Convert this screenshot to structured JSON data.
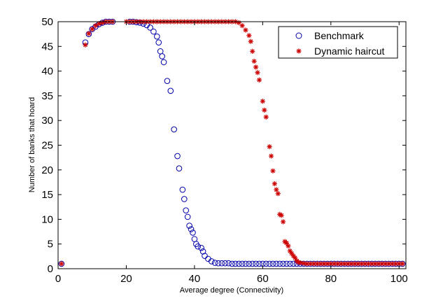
{
  "chart_data": {
    "type": "scatter",
    "title": "",
    "xlabel": "Average degree (Connectivity)",
    "ylabel": "Number of banks that hoard",
    "xlim": [
      0,
      102
    ],
    "ylim": [
      0,
      50
    ],
    "xticks": [
      0,
      20,
      40,
      60,
      80,
      100
    ],
    "yticks": [
      0,
      5,
      10,
      15,
      20,
      25,
      30,
      35,
      40,
      45,
      50
    ],
    "grid": false,
    "legend_position": "top-right",
    "series": [
      {
        "name": "Benchmark",
        "marker": "circle",
        "color": "#0000aa",
        "points": [
          [
            1,
            1
          ],
          [
            8,
            45.8
          ],
          [
            9,
            47.5
          ],
          [
            10,
            48.5
          ],
          [
            11,
            49
          ],
          [
            12,
            49.5
          ],
          [
            13,
            49.8
          ],
          [
            14,
            50
          ],
          [
            15,
            50
          ],
          [
            16,
            50
          ],
          [
            21,
            50
          ],
          [
            22,
            50
          ],
          [
            23,
            49.9
          ],
          [
            24,
            49.8
          ],
          [
            25,
            49.6
          ],
          [
            26,
            49.3
          ],
          [
            27,
            48.8
          ],
          [
            28,
            48
          ],
          [
            29,
            47
          ],
          [
            29.5,
            45.8
          ],
          [
            30,
            44
          ],
          [
            30.5,
            43
          ],
          [
            31,
            41.8
          ],
          [
            32,
            38
          ],
          [
            33,
            36
          ],
          [
            34,
            28.2
          ],
          [
            35,
            22.8
          ],
          [
            35.5,
            20.3
          ],
          [
            36.5,
            16
          ],
          [
            37,
            14.1
          ],
          [
            37.5,
            11.8
          ],
          [
            38,
            10.5
          ],
          [
            38.5,
            8.7
          ],
          [
            39,
            8
          ],
          [
            39.5,
            7.3
          ],
          [
            40,
            6
          ],
          [
            40.5,
            5
          ],
          [
            41,
            4.5
          ],
          [
            42,
            4.2
          ],
          [
            42.5,
            3.5
          ],
          [
            43,
            2.6
          ],
          [
            44,
            2
          ],
          [
            45,
            1.5
          ],
          [
            46,
            1.2
          ],
          [
            47,
            1.1
          ],
          [
            48,
            1.1
          ],
          [
            49,
            1.1
          ],
          [
            50,
            1.1
          ],
          [
            51,
            1
          ],
          [
            52,
            1
          ],
          [
            53,
            1
          ],
          [
            54,
            1
          ],
          [
            55,
            1
          ],
          [
            56,
            1
          ],
          [
            57,
            1
          ],
          [
            58,
            1
          ],
          [
            59,
            1
          ],
          [
            60,
            1
          ],
          [
            61,
            1
          ],
          [
            62,
            1
          ],
          [
            63,
            1
          ],
          [
            64,
            1
          ],
          [
            65,
            1
          ],
          [
            66,
            1
          ],
          [
            67,
            1
          ],
          [
            68,
            1
          ],
          [
            69,
            1
          ],
          [
            70,
            1
          ],
          [
            71,
            1
          ],
          [
            72,
            1
          ],
          [
            73,
            1
          ],
          [
            74,
            1
          ],
          [
            75,
            1
          ],
          [
            76,
            1
          ],
          [
            77,
            1
          ],
          [
            78,
            1
          ],
          [
            79,
            1
          ],
          [
            80,
            1
          ],
          [
            81,
            1
          ],
          [
            82,
            1
          ],
          [
            83,
            1
          ],
          [
            84,
            1
          ],
          [
            85,
            1
          ],
          [
            86,
            1
          ],
          [
            87,
            1
          ],
          [
            88,
            1
          ],
          [
            89,
            1
          ],
          [
            90,
            1
          ],
          [
            91,
            1
          ],
          [
            92,
            1
          ],
          [
            93,
            1
          ],
          [
            94,
            1
          ],
          [
            95,
            1
          ],
          [
            96,
            1
          ],
          [
            97,
            1
          ],
          [
            98,
            1
          ],
          [
            99,
            1
          ],
          [
            100,
            1
          ],
          [
            101,
            1
          ]
        ]
      },
      {
        "name": "Dynamic haircut",
        "marker": "star",
        "color": "#cc0000",
        "points": [
          [
            1,
            1
          ],
          [
            8,
            45.3
          ],
          [
            9,
            47.6
          ],
          [
            10,
            48.5
          ],
          [
            11,
            49.2
          ],
          [
            12,
            49.6
          ],
          [
            13,
            49.8
          ],
          [
            14,
            50
          ],
          [
            15,
            50
          ],
          [
            16,
            50
          ],
          [
            20,
            50
          ],
          [
            21,
            50
          ],
          [
            22,
            50
          ],
          [
            23,
            50
          ],
          [
            24,
            50
          ],
          [
            25,
            50
          ],
          [
            26,
            50
          ],
          [
            27,
            50
          ],
          [
            28,
            50
          ],
          [
            29,
            50
          ],
          [
            30,
            50
          ],
          [
            31,
            50
          ],
          [
            32,
            50
          ],
          [
            33,
            50
          ],
          [
            34,
            50
          ],
          [
            35,
            50
          ],
          [
            36,
            50
          ],
          [
            37,
            50
          ],
          [
            38,
            50
          ],
          [
            39,
            50
          ],
          [
            40,
            50
          ],
          [
            41,
            50
          ],
          [
            42,
            50
          ],
          [
            43,
            50
          ],
          [
            44,
            50
          ],
          [
            45,
            50
          ],
          [
            46,
            50
          ],
          [
            47,
            50
          ],
          [
            48,
            50
          ],
          [
            49,
            50
          ],
          [
            50,
            50
          ],
          [
            51,
            50
          ],
          [
            52,
            50
          ],
          [
            53,
            49.8
          ],
          [
            54,
            49.2
          ],
          [
            55,
            48.3
          ],
          [
            56,
            47.2
          ],
          [
            56.5,
            46
          ],
          [
            57,
            44
          ],
          [
            57.5,
            42
          ],
          [
            58,
            40.8
          ],
          [
            58.5,
            39.7
          ],
          [
            59,
            38.2
          ],
          [
            60,
            33.9
          ],
          [
            60.5,
            32.1
          ],
          [
            61,
            30.7
          ],
          [
            62,
            24.7
          ],
          [
            62.5,
            22.8
          ],
          [
            63,
            19.8
          ],
          [
            63.5,
            17.2
          ],
          [
            64,
            16
          ],
          [
            64.5,
            15.2
          ],
          [
            65,
            11
          ],
          [
            65.5,
            10.8
          ],
          [
            66,
            9.5
          ],
          [
            66.5,
            5.5
          ],
          [
            67,
            5.2
          ],
          [
            67.5,
            4.6
          ],
          [
            68,
            3.6
          ],
          [
            68.5,
            3.1
          ],
          [
            69,
            2.6
          ],
          [
            69.5,
            2.2
          ],
          [
            70,
            1.6
          ],
          [
            70.5,
            1.3
          ],
          [
            71,
            1.2
          ],
          [
            72,
            1.1
          ],
          [
            73,
            1
          ],
          [
            74,
            1
          ],
          [
            75,
            1
          ],
          [
            76,
            1
          ],
          [
            77,
            1
          ],
          [
            78,
            1
          ],
          [
            79,
            1
          ],
          [
            80,
            1
          ],
          [
            81,
            1
          ],
          [
            82,
            1
          ],
          [
            83,
            1
          ],
          [
            84,
            1
          ],
          [
            85,
            1
          ],
          [
            86,
            1
          ],
          [
            87,
            1
          ],
          [
            88,
            1
          ],
          [
            89,
            1
          ],
          [
            90,
            1
          ],
          [
            91,
            1
          ],
          [
            92,
            1
          ],
          [
            93,
            1
          ],
          [
            94,
            1
          ],
          [
            95,
            1
          ],
          [
            96,
            1
          ],
          [
            97,
            1
          ],
          [
            98,
            1
          ],
          [
            99,
            1
          ],
          [
            100,
            1
          ],
          [
            101,
            1
          ]
        ]
      }
    ]
  }
}
